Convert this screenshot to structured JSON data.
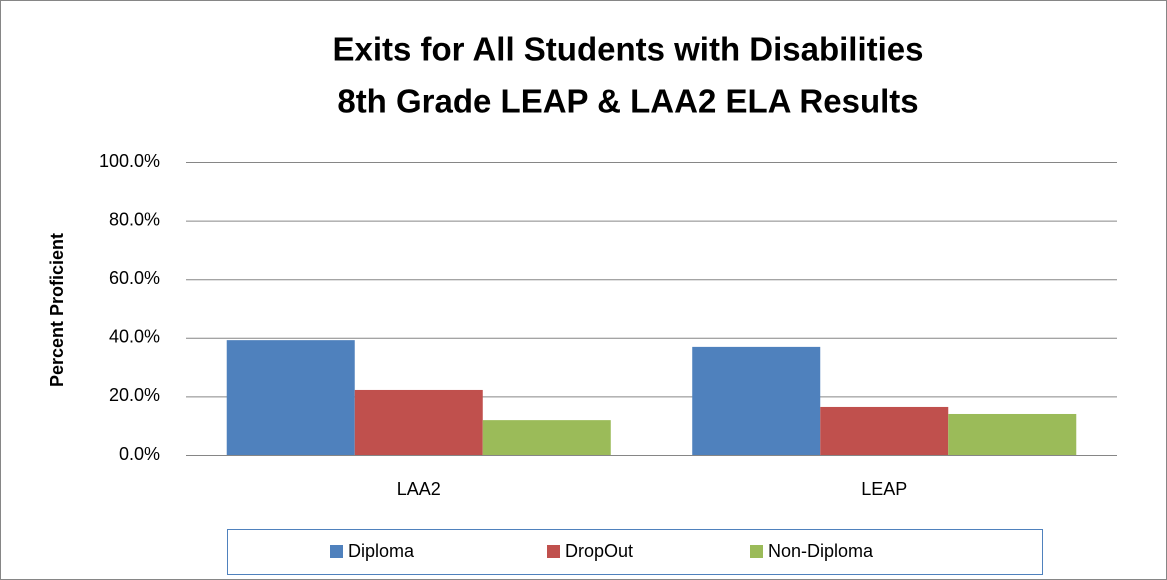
{
  "chart_data": {
    "type": "bar",
    "title": "Exits for All Students with Disabilities",
    "subtitle": "8th Grade LEAP & LAA2 ELA Results",
    "y_label": "Percent Proficient",
    "categories": [
      "LAA2",
      "LEAP"
    ],
    "series": [
      {
        "name": "Diploma",
        "color": "#4f81bd",
        "values": [
          39.2,
          36.9
        ]
      },
      {
        "name": "DropOut",
        "color": "#c0504d",
        "values": [
          22.2,
          16.4
        ]
      },
      {
        "name": "Non-Diploma",
        "color": "#9bbb59",
        "values": [
          11.9,
          14.0
        ]
      }
    ],
    "ylim": [
      0,
      100
    ],
    "yticks": [
      {
        "value": 0,
        "label": "0.0%"
      },
      {
        "value": 20,
        "label": "20.0%"
      },
      {
        "value": 40,
        "label": "40.0%"
      },
      {
        "value": 60,
        "label": "60.0%"
      },
      {
        "value": 80,
        "label": "80.0%"
      },
      {
        "value": 100,
        "label": "100.0%"
      }
    ],
    "grid": true,
    "legend": "bottom"
  }
}
